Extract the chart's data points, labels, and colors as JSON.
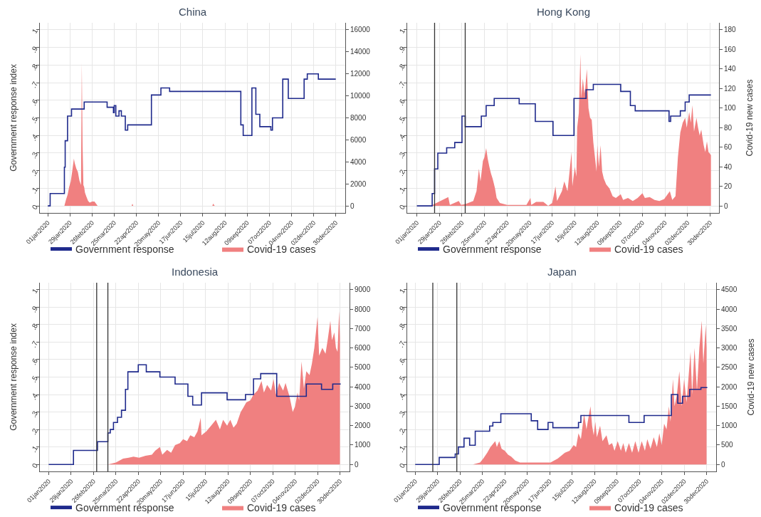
{
  "chart_data": [
    {
      "type": "step",
      "title": "China",
      "ylabel": "Government response index",
      "xlim": [
        "2019-12-22",
        "2021-01-11"
      ],
      "xticks": [
        {
          "value": "2020-01-01",
          "label": "01jan2020"
        },
        {
          "value": "2020-01-29",
          "label": "29jan2020"
        },
        {
          "value": "2020-02-26",
          "label": "26feb2020"
        },
        {
          "value": "2020-03-25",
          "label": "25mar2020"
        },
        {
          "value": "2020-04-22",
          "label": "22apr2020"
        },
        {
          "value": "2020-05-20",
          "label": "20may2020"
        },
        {
          "value": "2020-06-17",
          "label": "17jun2020"
        },
        {
          "value": "2020-07-15",
          "label": "15jul2020"
        },
        {
          "value": "2020-08-12",
          "label": "12aug2020"
        },
        {
          "value": "2020-09-09",
          "label": "09sep2020"
        },
        {
          "value": "2020-10-07",
          "label": "07oct2020"
        },
        {
          "value": "2020-11-04",
          "label": "04nov2020"
        },
        {
          "value": "2020-12-02",
          "label": "02dec2020"
        },
        {
          "value": "2020-12-30",
          "label": "30dec2020"
        }
      ],
      "ylim": [
        -0.04,
        1.04
      ],
      "yticks": [
        0,
        {
          "value": 0.1,
          "label": ".1"
        },
        {
          "value": 0.2,
          "label": ".2"
        },
        {
          "value": 0.3,
          "label": ".3"
        },
        {
          "value": 0.4,
          "label": ".4"
        },
        {
          "value": 0.5,
          "label": ".5"
        },
        {
          "value": 0.6,
          "label": ".6"
        },
        {
          "value": 0.7,
          "label": ".7"
        },
        {
          "value": 0.8,
          "label": ".8"
        },
        {
          "value": 0.9,
          "label": ".9"
        },
        1
      ],
      "y2lim": [
        -640,
        16640
      ],
      "y2ticks": [
        0,
        2000,
        4000,
        6000,
        8000,
        10000,
        12000,
        14000,
        16000
      ],
      "grid": true,
      "legend": "bottom",
      "series": [
        {
          "name": "Government response",
          "color": "#1f2a8c",
          "x": [
            "2020-01-01",
            "2020-01-04",
            "2020-01-22",
            "2020-01-23",
            "2020-01-26",
            "2020-01-31",
            "2020-02-16",
            "2020-03-16",
            "2020-03-24",
            "2020-03-25",
            "2020-03-27",
            "2020-03-31",
            "2020-04-03",
            "2020-04-08",
            "2020-04-11",
            "2020-05-11",
            "2020-05-23",
            "2020-06-03",
            "2020-09-01",
            "2020-09-04",
            "2020-09-15",
            "2020-09-20",
            "2020-09-25",
            "2020-10-09",
            "2020-10-11",
            "2020-10-24",
            "2020-10-31",
            "2020-11-20",
            "2020-11-24",
            "2020-12-08",
            "2020-12-30"
          ],
          "values": [
            0,
            0.07,
            0.22,
            0.37,
            0.51,
            0.55,
            0.59,
            0.56,
            0.53,
            0.57,
            0.51,
            0.54,
            0.51,
            0.43,
            0.46,
            0.63,
            0.67,
            0.65,
            0.46,
            0.4,
            0.67,
            0.52,
            0.45,
            0.43,
            0.5,
            0.72,
            0.61,
            0.72,
            0.75,
            0.72,
            0.72
          ]
        },
        {
          "name": "Covid-19 cases",
          "type": "area",
          "axis": "y2",
          "color": "#f08080",
          "x": [
            "2020-01-01",
            "2020-01-22",
            "2020-01-24",
            "2020-01-26",
            "2020-01-28",
            "2020-01-30",
            "2020-02-01",
            "2020-02-03",
            "2020-02-04",
            "2020-02-06",
            "2020-02-08",
            "2020-02-10",
            "2020-02-12",
            "2020-02-13",
            "2020-02-14",
            "2020-02-15",
            "2020-02-16",
            "2020-02-17",
            "2020-02-19",
            "2020-02-21",
            "2020-02-23",
            "2020-02-26",
            "2020-02-29",
            "2020-03-02",
            "2020-03-04",
            "2020-04-16",
            "2020-04-17",
            "2020-04-18",
            "2020-07-27",
            "2020-07-28",
            "2020-07-30",
            "2020-12-30"
          ],
          "values": [
            0,
            0,
            550,
            1000,
            1700,
            2200,
            3200,
            4300,
            3900,
            3400,
            3100,
            2300,
            1900,
            13000,
            5400,
            1900,
            1700,
            1200,
            800,
            450,
            300,
            400,
            400,
            200,
            0,
            0,
            200,
            0,
            0,
            200,
            0,
            0
          ]
        }
      ]
    },
    {
      "type": "step",
      "title": "Hong Kong",
      "y2label": "Covid-19 new cases",
      "xlim": [
        "2019-12-20",
        "2021-01-10"
      ],
      "xticks": [
        {
          "value": "2020-01-01",
          "label": "01jan2020"
        },
        {
          "value": "2020-01-29",
          "label": "29jan2020"
        },
        {
          "value": "2020-02-26",
          "label": "26feb2020"
        },
        {
          "value": "2020-03-25",
          "label": "25mar2020"
        },
        {
          "value": "2020-04-22",
          "label": "22apr2020"
        },
        {
          "value": "2020-05-20",
          "label": "20may2020"
        },
        {
          "value": "2020-06-17",
          "label": "17jun2020"
        },
        {
          "value": "2020-07-15",
          "label": "15jul2020"
        },
        {
          "value": "2020-08-12",
          "label": "12aug2020"
        },
        {
          "value": "2020-09-09",
          "label": "09sep2020"
        },
        {
          "value": "2020-10-07",
          "label": "07oct2020"
        },
        {
          "value": "2020-11-04",
          "label": "04nov2020"
        },
        {
          "value": "2020-12-02",
          "label": "02dec2020"
        },
        {
          "value": "2020-12-30",
          "label": "30dec2020"
        }
      ],
      "ylim": [
        -0.04,
        1.04
      ],
      "yticks": [
        0,
        {
          "value": 0.1,
          "label": ".1"
        },
        {
          "value": 0.2,
          "label": ".2"
        },
        {
          "value": 0.3,
          "label": ".3"
        },
        {
          "value": 0.4,
          "label": ".4"
        },
        {
          "value": 0.5,
          "label": ".5"
        },
        {
          "value": 0.6,
          "label": ".6"
        },
        {
          "value": 0.7,
          "label": ".7"
        },
        {
          "value": 0.8,
          "label": ".8"
        },
        {
          "value": 0.9,
          "label": ".9"
        },
        1
      ],
      "y2lim": [
        -7.2,
        187.2
      ],
      "y2ticks": [
        0,
        20,
        40,
        60,
        80,
        100,
        120,
        140,
        160,
        180
      ],
      "grid": true,
      "legend": "bottom",
      "ref_lines": [
        {
          "axis": "x",
          "value": "2020-01-23",
          "color": "#333333"
        },
        {
          "axis": "x",
          "value": "2020-03-01",
          "color": "#333333"
        }
      ],
      "series": [
        {
          "name": "Government response",
          "color": "#1f2a8c",
          "x": [
            "2020-01-01",
            "2020-01-20",
            "2020-01-23",
            "2020-01-27",
            "2020-02-07",
            "2020-02-17",
            "2020-02-26",
            "2020-03-01",
            "2020-03-21",
            "2020-03-27",
            "2020-04-06",
            "2020-05-07",
            "2020-05-27",
            "2020-06-18",
            "2020-07-14",
            "2020-07-29",
            "2020-08-07",
            "2020-09-10",
            "2020-09-22",
            "2020-09-28",
            "2020-11-09",
            "2020-11-11",
            "2020-11-23",
            "2020-11-29",
            "2020-12-04",
            "2020-12-31"
          ],
          "values": [
            0,
            0.07,
            0.21,
            0.3,
            0.33,
            0.36,
            0.51,
            0.45,
            0.51,
            0.57,
            0.61,
            0.58,
            0.48,
            0.4,
            0.61,
            0.66,
            0.69,
            0.65,
            0.57,
            0.54,
            0.48,
            0.51,
            0.54,
            0.59,
            0.63,
            0.63
          ]
        },
        {
          "name": "Covid-19 cases",
          "type": "area",
          "axis": "y2",
          "color": "#f08080",
          "x": [
            "2020-01-01",
            "2020-01-19",
            "2020-01-23",
            "2020-02-09",
            "2020-02-11",
            "2020-02-22",
            "2020-02-25",
            "2020-03-02",
            "2020-03-11",
            "2020-03-15",
            "2020-03-18",
            "2020-03-20",
            "2020-03-23",
            "2020-03-25",
            "2020-03-27",
            "2020-03-29",
            "2020-03-31",
            "2020-04-02",
            "2020-04-04",
            "2020-04-07",
            "2020-04-09",
            "2020-04-13",
            "2020-04-22",
            "2020-05-16",
            "2020-05-21",
            "2020-05-22",
            "2020-05-28",
            "2020-06-06",
            "2020-06-12",
            "2020-06-17",
            "2020-06-21",
            "2020-06-23",
            "2020-06-29",
            "2020-07-02",
            "2020-07-06",
            "2020-07-11",
            "2020-07-12",
            "2020-07-15",
            "2020-07-17",
            "2020-07-18",
            "2020-07-20",
            "2020-07-22",
            "2020-07-23",
            "2020-07-25",
            "2020-07-27",
            "2020-07-28",
            "2020-07-30",
            "2020-08-01",
            "2020-08-03",
            "2020-08-05",
            "2020-08-07",
            "2020-08-09",
            "2020-08-11",
            "2020-08-12",
            "2020-08-14",
            "2020-08-16",
            "2020-08-18",
            "2020-08-20",
            "2020-08-23",
            "2020-08-27",
            "2020-08-31",
            "2020-09-04",
            "2020-09-10",
            "2020-09-13",
            "2020-09-19",
            "2020-09-25",
            "2020-10-01",
            "2020-10-07",
            "2020-10-10",
            "2020-10-16",
            "2020-10-22",
            "2020-10-28",
            "2020-11-03",
            "2020-11-10",
            "2020-11-13",
            "2020-11-17",
            "2020-11-20",
            "2020-11-23",
            "2020-11-26",
            "2020-11-29",
            "2020-12-01",
            "2020-12-04",
            "2020-12-06",
            "2020-12-08",
            "2020-12-10",
            "2020-12-13",
            "2020-12-15",
            "2020-12-17",
            "2020-12-19",
            "2020-12-22",
            "2020-12-24",
            "2020-12-26",
            "2020-12-28",
            "2020-12-30",
            "2020-12-31"
          ],
          "values": [
            0,
            0,
            2,
            9,
            1,
            5,
            1,
            2,
            5,
            15,
            38,
            25,
            46,
            50,
            59,
            48,
            40,
            33,
            28,
            18,
            8,
            3,
            1,
            1,
            8,
            1,
            4,
            4,
            0,
            3,
            20,
            5,
            15,
            25,
            15,
            55,
            20,
            40,
            30,
            80,
            95,
            155,
            110,
            130,
            115,
            120,
            140,
            100,
            90,
            88,
            65,
            50,
            35,
            62,
            40,
            62,
            35,
            28,
            22,
            18,
            10,
            8,
            12,
            6,
            8,
            5,
            8,
            13,
            8,
            9,
            6,
            5,
            7,
            15,
            6,
            10,
            50,
            75,
            85,
            90,
            80,
            96,
            85,
            103,
            76,
            90,
            80,
            72,
            78,
            62,
            55,
            66,
            55,
            53,
            52
          ]
        }
      ]
    },
    {
      "type": "step",
      "title": "Indonesia",
      "ylabel": "Government response index",
      "xlim": [
        "2019-12-21",
        "2021-01-11"
      ],
      "xticks": [
        {
          "value": "2020-01-01",
          "label": "01jan2020"
        },
        {
          "value": "2020-01-29",
          "label": "29jan2020"
        },
        {
          "value": "2020-02-26",
          "label": "26feb2020"
        },
        {
          "value": "2020-03-25",
          "label": "25mar2020"
        },
        {
          "value": "2020-04-22",
          "label": "22apr2020"
        },
        {
          "value": "2020-05-20",
          "label": "20may2020"
        },
        {
          "value": "2020-06-17",
          "label": "17jun2020"
        },
        {
          "value": "2020-07-15",
          "label": "15jul2020"
        },
        {
          "value": "2020-08-12",
          "label": "12aug2020"
        },
        {
          "value": "2020-09-09",
          "label": "09sep2020"
        },
        {
          "value": "2020-10-07",
          "label": "07oct2020"
        },
        {
          "value": "2020-11-04",
          "label": "04nov2020"
        },
        {
          "value": "2020-12-02",
          "label": "02dec2020"
        },
        {
          "value": "2020-12-30",
          "label": "30dec2020"
        }
      ],
      "ylim": [
        -0.04,
        1.04
      ],
      "yticks": [
        0,
        {
          "value": 0.1,
          "label": ".1"
        },
        {
          "value": 0.2,
          "label": ".2"
        },
        {
          "value": 0.3,
          "label": ".3"
        },
        {
          "value": 0.4,
          "label": ".4"
        },
        {
          "value": 0.5,
          "label": ".5"
        },
        {
          "value": 0.6,
          "label": ".6"
        },
        {
          "value": 0.7,
          "label": ".7"
        },
        {
          "value": 0.8,
          "label": ".8"
        },
        {
          "value": 0.9,
          "label": ".9"
        },
        1
      ],
      "y2lim": [
        -360,
        9360
      ],
      "y2ticks": [
        0,
        1000,
        2000,
        3000,
        4000,
        5000,
        6000,
        7000,
        8000,
        9000
      ],
      "grid": true,
      "legend": "bottom",
      "ref_lines": [
        {
          "axis": "x",
          "value": "2020-03-01",
          "color": "#333333"
        },
        {
          "axis": "x",
          "value": "2020-03-15",
          "color": "#333333"
        }
      ],
      "series": [
        {
          "name": "Government response",
          "color": "#1f2a8c",
          "x": [
            "2020-01-01",
            "2020-02-01",
            "2020-03-02",
            "2020-03-15",
            "2020-03-18",
            "2020-03-22",
            "2020-03-27",
            "2020-04-01",
            "2020-04-06",
            "2020-04-09",
            "2020-04-22",
            "2020-05-02",
            "2020-05-19",
            "2020-06-07",
            "2020-06-23",
            "2020-06-29",
            "2020-07-10",
            "2020-08-11",
            "2020-09-03",
            "2020-09-13",
            "2020-09-22",
            "2020-10-12",
            "2020-11-18",
            "2020-12-07",
            "2020-12-21",
            "2020-12-31"
          ],
          "values": [
            0,
            0.08,
            0.13,
            0.18,
            0.2,
            0.24,
            0.27,
            0.31,
            0.43,
            0.53,
            0.57,
            0.53,
            0.5,
            0.46,
            0.39,
            0.34,
            0.41,
            0.37,
            0.4,
            0.49,
            0.52,
            0.39,
            0.46,
            0.43,
            0.46,
            0.46
          ]
        },
        {
          "name": "Covid-19 cases",
          "type": "area",
          "axis": "y2",
          "color": "#f08080",
          "x": [
            "2020-03-15",
            "2020-03-25",
            "2020-04-03",
            "2020-04-10",
            "2020-04-16",
            "2020-04-23",
            "2020-05-01",
            "2020-05-09",
            "2020-05-13",
            "2020-05-19",
            "2020-05-22",
            "2020-05-28",
            "2020-06-02",
            "2020-06-07",
            "2020-06-13",
            "2020-06-17",
            "2020-06-22",
            "2020-06-26",
            "2020-07-01",
            "2020-07-05",
            "2020-07-09",
            "2020-07-10",
            "2020-07-16",
            "2020-07-22",
            "2020-07-28",
            "2020-08-02",
            "2020-08-06",
            "2020-08-11",
            "2020-08-15",
            "2020-08-19",
            "2020-08-23",
            "2020-08-28",
            "2020-08-31",
            "2020-09-04",
            "2020-09-09",
            "2020-09-13",
            "2020-09-18",
            "2020-09-23",
            "2020-09-26",
            "2020-09-30",
            "2020-10-05",
            "2020-10-08",
            "2020-10-11",
            "2020-10-15",
            "2020-10-20",
            "2020-10-23",
            "2020-10-28",
            "2020-11-01",
            "2020-11-04",
            "2020-11-07",
            "2020-11-09",
            "2020-11-12",
            "2020-11-15",
            "2020-11-18",
            "2020-11-22",
            "2020-11-25",
            "2020-11-28",
            "2020-12-02",
            "2020-12-04",
            "2020-12-08",
            "2020-12-12",
            "2020-12-15",
            "2020-12-18",
            "2020-12-20",
            "2020-12-23",
            "2020-12-25",
            "2020-12-27",
            "2020-12-29",
            "2020-12-30"
          ],
          "values": [
            0,
            100,
            300,
            350,
            400,
            350,
            450,
            500,
            700,
            900,
            500,
            750,
            600,
            1000,
            1100,
            1300,
            1200,
            1500,
            1400,
            1700,
            2400,
            1500,
            1700,
            2000,
            2300,
            1800,
            2300,
            2000,
            2300,
            1900,
            2100,
            2700,
            2900,
            3200,
            3300,
            3600,
            3800,
            4300,
            3700,
            4100,
            3800,
            4400,
            3600,
            4200,
            3800,
            4200,
            3500,
            2700,
            3000,
            3700,
            3300,
            5300,
            3900,
            4800,
            4600,
            5200,
            6000,
            7600,
            5600,
            6000,
            5700,
            6500,
            7400,
            6400,
            6800,
            6000,
            5800,
            7900,
            6500
          ]
        }
      ]
    },
    {
      "type": "step",
      "title": "Japan",
      "y2label": "Covid-19 new cases",
      "xlim": [
        "2019-12-22",
        "2021-01-11"
      ],
      "xticks": [
        {
          "value": "2020-01-01",
          "label": "01jan2020"
        },
        {
          "value": "2020-01-29",
          "label": "29jan2020"
        },
        {
          "value": "2020-02-26",
          "label": "26feb2020"
        },
        {
          "value": "2020-03-25",
          "label": "25mar2020"
        },
        {
          "value": "2020-04-22",
          "label": "22apr2020"
        },
        {
          "value": "2020-05-20",
          "label": "20may2020"
        },
        {
          "value": "2020-06-17",
          "label": "17jun2020"
        },
        {
          "value": "2020-07-15",
          "label": "15jul2020"
        },
        {
          "value": "2020-08-12",
          "label": "12aug2020"
        },
        {
          "value": "2020-09-09",
          "label": "09sep2020"
        },
        {
          "value": "2020-10-07",
          "label": "07oct2020"
        },
        {
          "value": "2020-11-04",
          "label": "04nov2020"
        },
        {
          "value": "2020-12-02",
          "label": "02dec2020"
        },
        {
          "value": "2020-12-30",
          "label": "30dec2020"
        }
      ],
      "ylim": [
        -0.04,
        1.04
      ],
      "yticks": [
        0,
        {
          "value": 0.1,
          "label": ".1"
        },
        {
          "value": 0.2,
          "label": ".2"
        },
        {
          "value": 0.3,
          "label": ".3"
        },
        {
          "value": 0.4,
          "label": ".4"
        },
        {
          "value": 0.5,
          "label": ".5"
        },
        {
          "value": 0.6,
          "label": ".6"
        },
        {
          "value": 0.7,
          "label": ".7"
        },
        {
          "value": 0.8,
          "label": ".8"
        },
        {
          "value": 0.9,
          "label": ".9"
        },
        1
      ],
      "y2lim": [
        -180,
        4680
      ],
      "y2ticks": [
        0,
        500,
        1000,
        1500,
        2000,
        2500,
        3000,
        3500,
        4000,
        4500
      ],
      "grid": true,
      "legend": "bottom",
      "ref_lines": [
        {
          "axis": "x",
          "value": "2020-01-23",
          "color": "#333333"
        },
        {
          "axis": "x",
          "value": "2020-02-22",
          "color": "#333333"
        }
      ],
      "series": [
        {
          "name": "Government response",
          "color": "#1f2a8c",
          "x": [
            "2020-01-01",
            "2020-01-31",
            "2020-02-20",
            "2020-02-24",
            "2020-03-02",
            "2020-03-09",
            "2020-03-16",
            "2020-04-03",
            "2020-04-07",
            "2020-04-17",
            "2020-05-25",
            "2020-06-02",
            "2020-06-15",
            "2020-06-21",
            "2020-07-23",
            "2020-07-26",
            "2020-09-24",
            "2020-10-13",
            "2020-11-16",
            "2020-11-24",
            "2020-11-30",
            "2020-12-09",
            "2020-12-23",
            "2020-12-31"
          ],
          "values": [
            0,
            0.04,
            0.06,
            0.1,
            0.15,
            0.11,
            0.19,
            0.22,
            0.24,
            0.29,
            0.25,
            0.2,
            0.24,
            0.21,
            0.24,
            0.28,
            0.24,
            0.28,
            0.4,
            0.35,
            0.39,
            0.43,
            0.44,
            0.44
          ]
        },
        {
          "name": "Covid-19 cases",
          "type": "area",
          "axis": "y2",
          "color": "#f08080",
          "x": [
            "2020-02-24",
            "2020-03-13",
            "2020-03-22",
            "2020-03-26",
            "2020-03-31",
            "2020-04-04",
            "2020-04-10",
            "2020-04-12",
            "2020-04-15",
            "2020-04-18",
            "2020-04-22",
            "2020-04-26",
            "2020-04-30",
            "2020-05-05",
            "2020-05-11",
            "2020-05-25",
            "2020-06-06",
            "2020-06-18",
            "2020-06-27",
            "2020-07-06",
            "2020-07-12",
            "2020-07-17",
            "2020-07-20",
            "2020-07-23",
            "2020-07-26",
            "2020-07-30",
            "2020-08-02",
            "2020-08-04",
            "2020-08-07",
            "2020-08-09",
            "2020-08-11",
            "2020-08-13",
            "2020-08-15",
            "2020-08-19",
            "2020-08-22",
            "2020-08-27",
            "2020-08-30",
            "2020-09-03",
            "2020-09-06",
            "2020-09-10",
            "2020-09-14",
            "2020-09-17",
            "2020-09-20",
            "2020-09-24",
            "2020-09-28",
            "2020-10-02",
            "2020-10-06",
            "2020-10-10",
            "2020-10-14",
            "2020-10-17",
            "2020-10-21",
            "2020-10-25",
            "2020-10-29",
            "2020-11-01",
            "2020-11-04",
            "2020-11-07",
            "2020-11-10",
            "2020-11-13",
            "2020-11-15",
            "2020-11-18",
            "2020-11-20",
            "2020-11-23",
            "2020-11-26",
            "2020-11-29",
            "2020-12-02",
            "2020-12-05",
            "2020-12-10",
            "2020-12-12",
            "2020-12-15",
            "2020-12-18",
            "2020-12-21",
            "2020-12-24",
            "2020-12-26",
            "2020-12-29",
            "2020-12-30"
          ],
          "values": [
            0,
            0,
            50,
            150,
            300,
            450,
            600,
            450,
            600,
            400,
            350,
            250,
            200,
            100,
            50,
            50,
            50,
            50,
            150,
            300,
            350,
            500,
            450,
            800,
            650,
            1300,
            900,
            1150,
            1500,
            1000,
            750,
            1100,
            700,
            1000,
            600,
            750,
            500,
            550,
            350,
            600,
            350,
            550,
            300,
            550,
            300,
            600,
            300,
            600,
            350,
            650,
            400,
            700,
            450,
            800,
            500,
            1050,
            900,
            1500,
            1100,
            2200,
            1500,
            1800,
            2400,
            1500,
            2200,
            1600,
            2900,
            1800,
            3000,
            1900,
            3000,
            3700,
            2600,
            3600,
            3000
          ]
        }
      ]
    }
  ]
}
